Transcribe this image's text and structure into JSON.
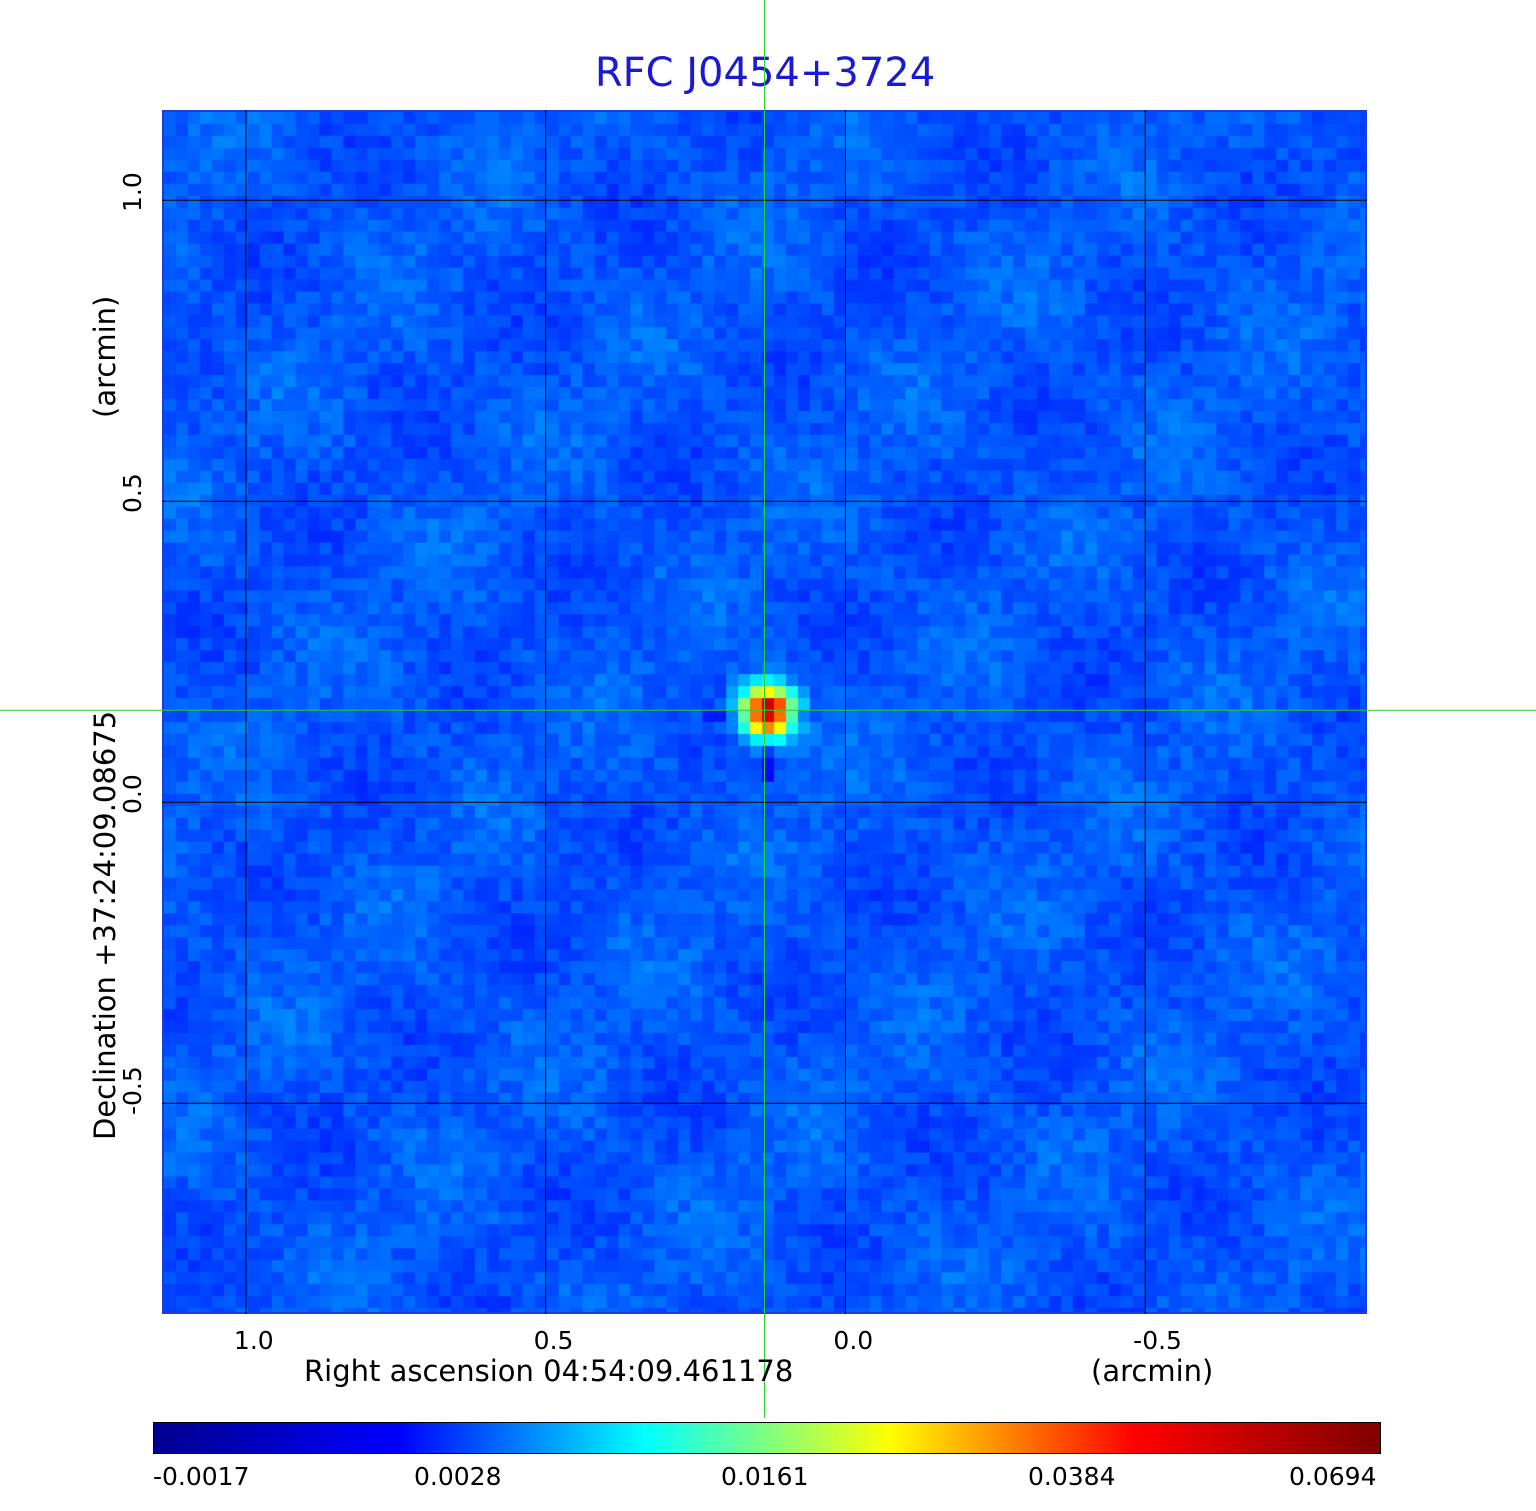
{
  "chart_data": {
    "type": "heatmap",
    "title": "RFC J0454+3724",
    "xlabel": "Right ascension  04:54:09.461178",
    "xlabel_unit": "(arcmin)",
    "ylabel": "Declination  +37:24:09.08675",
    "ylabel_unit": "(arcmin)",
    "x_range": [
      1.14,
      -0.87
    ],
    "y_range": [
      -0.85,
      1.15
    ],
    "x_ticks": [
      1.0,
      0.5,
      0.0,
      -0.5
    ],
    "x_tick_labels": [
      "1.0",
      "0.5",
      "0.0",
      "-0.5"
    ],
    "y_ticks": [
      1.0,
      0.5,
      0.0,
      -0.5
    ],
    "y_tick_labels": [
      "1.0",
      "0.5",
      "0.0",
      "-0.5"
    ],
    "grid": true,
    "source": {
      "x": 0.13,
      "y": 0.15,
      "peak": 0.0694
    },
    "crosshair": {
      "x": 0.135,
      "y": 0.153
    },
    "colorbar": {
      "labels": [
        "-0.0017",
        "0.0028",
        "0.0161",
        "0.0384",
        "0.0694"
      ],
      "colors": [
        "#00008f",
        "#0000ff",
        "#00ffff",
        "#ffff00",
        "#ff0000",
        "#800000"
      ]
    }
  }
}
